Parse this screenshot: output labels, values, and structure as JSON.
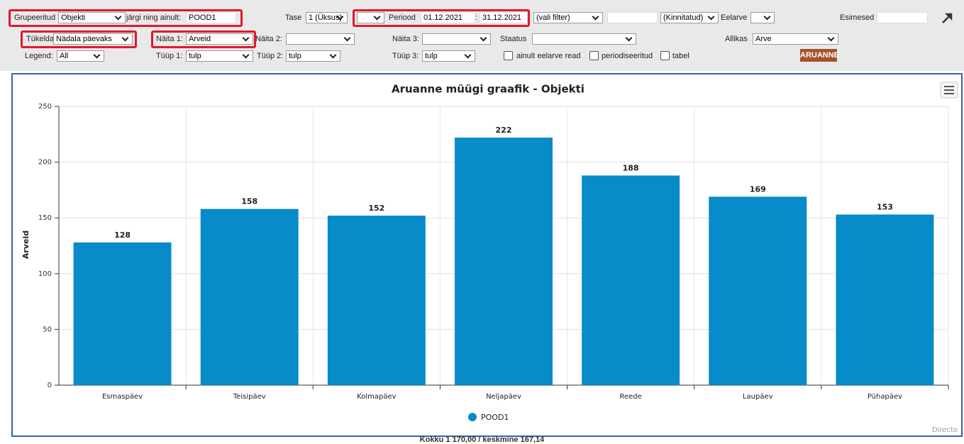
{
  "toolbar": {
    "group_label": "Grupeeritud",
    "group_value": "Objekti",
    "only_label": "järgi ning ainult:",
    "only_value": "POOD1",
    "level_label": "Tase",
    "level_value": "1 (Üksus)",
    "period_label": "Periood",
    "period_from": "01.12.2021",
    "period_sep": ":",
    "period_to": "31.12.2021",
    "filter_value": "(vali filter)",
    "confirm_value": "(Kinnitatud)",
    "budget_label": "Eelarve",
    "first_label": "Esimesed",
    "split_label": "Tükelda:",
    "split_value": "Nädala päevaks",
    "show1_label": "Näita 1:",
    "show1_value": "Arveid",
    "show2_label": "Näita 2:",
    "show3_label": "Näita 3:",
    "status_label": "Staatus",
    "source_label": "Allikas",
    "source_value": "Arve",
    "legend_label": "Legend:",
    "legend_value": "All",
    "type1_label": "Tüüp 1:",
    "type1_value": "tulp",
    "type2_label": "Tüüp 2:",
    "type2_value": "tulp",
    "type3_label": "Tüüp 3:",
    "type3_value": "tulp",
    "check1": "ainult eelarve read",
    "check2": "periodiseeritud",
    "check3": "tabel",
    "button": "ARUANNE"
  },
  "chart_data": {
    "type": "bar",
    "title": "Aruanne müügi graafik - Objekti",
    "ylabel": "Arveid",
    "categories": [
      "Esmaspäev",
      "Teisipäev",
      "Kolmapäev",
      "Neljapäev",
      "Reede",
      "Laupäev",
      "Pühapäev"
    ],
    "series": [
      {
        "name": "POOD1",
        "color": "#078bc9",
        "values": [
          128,
          158,
          152,
          222,
          188,
          169,
          153
        ]
      }
    ],
    "ylim": [
      0,
      250
    ],
    "yticks": [
      0,
      50,
      100,
      150,
      200,
      250
    ],
    "grid": true,
    "credit": "Directo"
  },
  "footer": "Kokku 1 170,00 / keskmine 167,14"
}
